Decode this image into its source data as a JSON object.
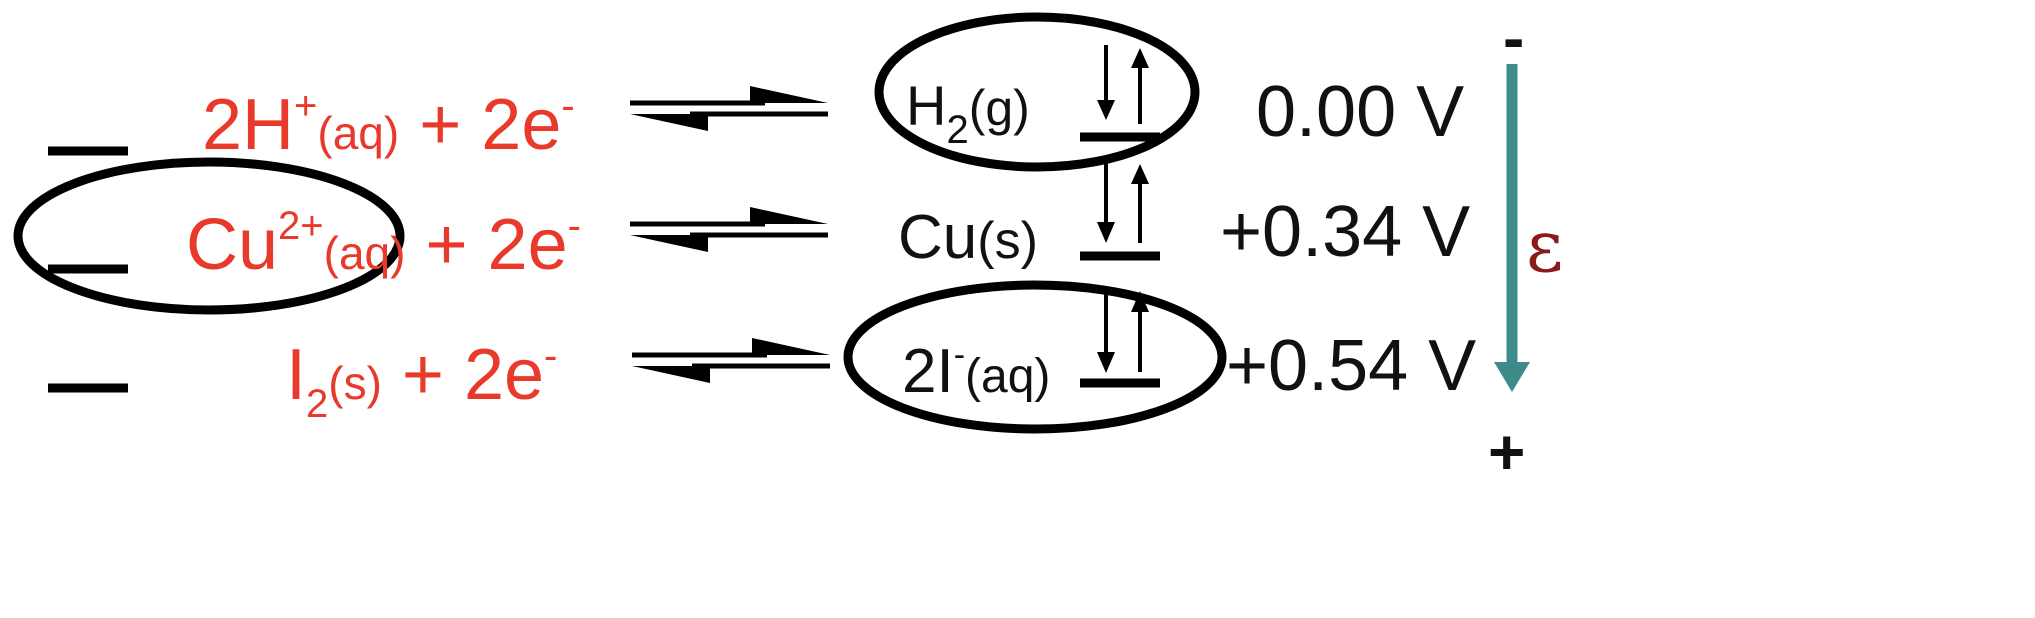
{
  "reactions": [
    {
      "id": "h",
      "left_main": "2H",
      "left_sup": "+",
      "left_state": "(aq)",
      "left_tail": " + 2e",
      "left_tail_sup": "-",
      "right_main": "H",
      "right_sub": "2",
      "right_state": "(g)",
      "potential": "0.00 V"
    },
    {
      "id": "cu",
      "left_main": "Cu",
      "left_sup": "2+",
      "left_state": "(aq)",
      "left_tail": " + 2e",
      "left_tail_sup": "-",
      "right_main": "Cu",
      "right_state": "(s)",
      "potential": "+0.34 V"
    },
    {
      "id": "i",
      "left_main": "I",
      "left_sub": "2",
      "left_state": "(s)",
      "left_tail": " + 2e",
      "left_tail_sup": "-",
      "right_main": "2I",
      "right_sup": "-",
      "right_state": "(aq)",
      "potential": "+0.54 V"
    }
  ],
  "polarity": {
    "top": "-",
    "bottom": "+"
  },
  "emf_symbol": "ε",
  "colors": {
    "oxidant_text": "#e8392b",
    "reductant_text": "#111111",
    "emf_arrow": "#3d8b8b",
    "emf_symbol": "#8b1a1a"
  }
}
